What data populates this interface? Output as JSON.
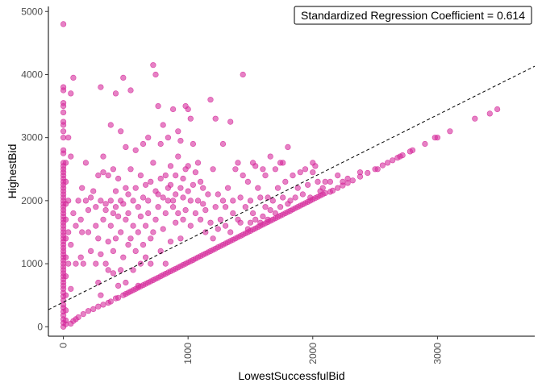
{
  "chart_data": {
    "type": "scatter",
    "title": "",
    "xlabel": "LowestSuccessfulBid",
    "ylabel": "HighestBid",
    "xlim": [
      -120,
      3780
    ],
    "ylim": [
      -150,
      5080
    ],
    "x_ticks": [
      0,
      1000,
      2000,
      3000
    ],
    "x_tick_labels": [
      "0",
      "1000",
      "2000",
      "3000"
    ],
    "y_ticks": [
      0,
      1000,
      2000,
      3000,
      4000,
      5000
    ],
    "y_tick_labels": [
      "0",
      "1000",
      "2000",
      "3000",
      "4000",
      "5000"
    ],
    "grid": false,
    "annotation": "Standardized Regression Coefficient = 0.614",
    "annotation_position": "top-right",
    "point_color": "#d62d9c",
    "regression_line": {
      "style": "dashed",
      "color": "#000000",
      "intercept": 390,
      "slope": 0.99
    },
    "points": [
      [
        0,
        0
      ],
      [
        0,
        60
      ],
      [
        0,
        120
      ],
      [
        0,
        180
      ],
      [
        0,
        240
      ],
      [
        0,
        300
      ],
      [
        0,
        350
      ],
      [
        0,
        420
      ],
      [
        0,
        480
      ],
      [
        0,
        540
      ],
      [
        0,
        600
      ],
      [
        0,
        650
      ],
      [
        0,
        700
      ],
      [
        0,
        750
      ],
      [
        0,
        800
      ],
      [
        0,
        850
      ],
      [
        0,
        900
      ],
      [
        0,
        950
      ],
      [
        0,
        1000
      ],
      [
        0,
        1050
      ],
      [
        0,
        1100
      ],
      [
        0,
        1150
      ],
      [
        0,
        1200
      ],
      [
        0,
        1250
      ],
      [
        0,
        1300
      ],
      [
        0,
        1350
      ],
      [
        0,
        1400
      ],
      [
        0,
        1450
      ],
      [
        0,
        1500
      ],
      [
        0,
        1550
      ],
      [
        0,
        1600
      ],
      [
        0,
        1650
      ],
      [
        0,
        1700
      ],
      [
        0,
        1750
      ],
      [
        0,
        1800
      ],
      [
        0,
        1850
      ],
      [
        0,
        1900
      ],
      [
        0,
        1950
      ],
      [
        0,
        2000
      ],
      [
        0,
        2050
      ],
      [
        0,
        2100
      ],
      [
        0,
        2150
      ],
      [
        0,
        2200
      ],
      [
        0,
        2250
      ],
      [
        0,
        2300
      ],
      [
        0,
        2350
      ],
      [
        0,
        2400
      ],
      [
        0,
        2450
      ],
      [
        0,
        2500
      ],
      [
        0,
        2550
      ],
      [
        0,
        2600
      ],
      [
        0,
        2750
      ],
      [
        0,
        2800
      ],
      [
        0,
        3000
      ],
      [
        0,
        3100
      ],
      [
        0,
        3200
      ],
      [
        0,
        3250
      ],
      [
        0,
        3400
      ],
      [
        0,
        3500
      ],
      [
        0,
        3550
      ],
      [
        0,
        3750
      ],
      [
        0,
        3800
      ],
      [
        0,
        4800
      ],
      [
        20,
        40
      ],
      [
        20,
        100
      ],
      [
        20,
        260
      ],
      [
        20,
        500
      ],
      [
        20,
        800
      ],
      [
        20,
        1100
      ],
      [
        20,
        1400
      ],
      [
        20,
        1700
      ],
      [
        20,
        1950
      ],
      [
        20,
        2300
      ],
      [
        20,
        2600
      ],
      [
        40,
        1000
      ],
      [
        40,
        1500
      ],
      [
        40,
        2000
      ],
      [
        40,
        3000
      ],
      [
        60,
        50
      ],
      [
        60,
        600
      ],
      [
        60,
        1300
      ],
      [
        60,
        2700
      ],
      [
        60,
        3700
      ],
      [
        80,
        90
      ],
      [
        80,
        1800
      ],
      [
        80,
        3950
      ],
      [
        100,
        120
      ],
      [
        100,
        1000
      ],
      [
        100,
        1600
      ],
      [
        120,
        150
      ],
      [
        120,
        2000
      ],
      [
        140,
        1100
      ],
      [
        140,
        1700
      ],
      [
        150,
        2200
      ],
      [
        150,
        1500
      ],
      [
        160,
        1000
      ],
      [
        160,
        200
      ],
      [
        180,
        2000
      ],
      [
        180,
        2600
      ],
      [
        200,
        250
      ],
      [
        200,
        1500
      ],
      [
        200,
        1850
      ],
      [
        220,
        2050
      ],
      [
        220,
        1200
      ],
      [
        240,
        280
      ],
      [
        240,
        2150
      ],
      [
        260,
        1600
      ],
      [
        260,
        1000
      ],
      [
        260,
        1900
      ],
      [
        280,
        320
      ],
      [
        280,
        2400
      ],
      [
        280,
        1400
      ],
      [
        280,
        700
      ],
      [
        300,
        2000
      ],
      [
        300,
        1150
      ],
      [
        300,
        500
      ],
      [
        300,
        3800
      ],
      [
        320,
        350
      ],
      [
        320,
        1700
      ],
      [
        320,
        2700
      ],
      [
        320,
        2450
      ],
      [
        340,
        1850
      ],
      [
        340,
        1000
      ],
      [
        340,
        1950
      ],
      [
        360,
        380
      ],
      [
        360,
        2400
      ],
      [
        360,
        1350
      ],
      [
        360,
        900
      ],
      [
        380,
        400
      ],
      [
        380,
        1600
      ],
      [
        380,
        2000
      ],
      [
        380,
        3200
      ],
      [
        400,
        1800
      ],
      [
        400,
        1200
      ],
      [
        400,
        2500
      ],
      [
        400,
        850
      ],
      [
        420,
        450
      ],
      [
        420,
        1900
      ],
      [
        420,
        2150
      ],
      [
        420,
        1400
      ],
      [
        420,
        3700
      ],
      [
        440,
        460
      ],
      [
        440,
        2350
      ],
      [
        440,
        1750
      ],
      [
        440,
        650
      ],
      [
        460,
        2000
      ],
      [
        460,
        1500
      ],
      [
        460,
        3100
      ],
      [
        460,
        900
      ],
      [
        480,
        500
      ],
      [
        480,
        1950
      ],
      [
        480,
        3950
      ],
      [
        480,
        1100
      ],
      [
        500,
        520
      ],
      [
        500,
        2200
      ],
      [
        500,
        1700
      ],
      [
        500,
        2850
      ],
      [
        500,
        700
      ],
      [
        520,
        540
      ],
      [
        520,
        1800
      ],
      [
        520,
        2100
      ],
      [
        520,
        1300
      ],
      [
        540,
        560
      ],
      [
        540,
        2500
      ],
      [
        540,
        1400
      ],
      [
        540,
        3750
      ],
      [
        560,
        580
      ],
      [
        560,
        1600
      ],
      [
        560,
        2000
      ],
      [
        560,
        900
      ],
      [
        580,
        600
      ],
      [
        580,
        2200
      ],
      [
        580,
        2800
      ],
      [
        580,
        1200
      ],
      [
        600,
        620
      ],
      [
        600,
        1900
      ],
      [
        600,
        1500
      ],
      [
        600,
        650
      ],
      [
        620,
        640
      ],
      [
        620,
        2400
      ],
      [
        620,
        1000
      ],
      [
        620,
        1750
      ],
      [
        640,
        660
      ],
      [
        640,
        2900
      ],
      [
        640,
        1300
      ],
      [
        640,
        2050
      ],
      [
        660,
        680
      ],
      [
        660,
        1600
      ],
      [
        660,
        2250
      ],
      [
        660,
        1100
      ],
      [
        680,
        700
      ],
      [
        680,
        2000
      ],
      [
        680,
        1800
      ],
      [
        680,
        3000
      ],
      [
        700,
        720
      ],
      [
        700,
        2300
      ],
      [
        700,
        1400
      ],
      [
        700,
        1000
      ],
      [
        720,
        740
      ],
      [
        720,
        4150
      ],
      [
        720,
        2600
      ],
      [
        720,
        1500
      ],
      [
        740,
        760
      ],
      [
        740,
        4000
      ],
      [
        740,
        2150
      ],
      [
        740,
        1700
      ],
      [
        760,
        780
      ],
      [
        760,
        2100
      ],
      [
        760,
        3500
      ],
      [
        760,
        1900
      ],
      [
        780,
        800
      ],
      [
        780,
        2350
      ],
      [
        780,
        1200
      ],
      [
        780,
        2900
      ],
      [
        800,
        820
      ],
      [
        800,
        2050
      ],
      [
        800,
        3200
      ],
      [
        800,
        1550
      ],
      [
        820,
        840
      ],
      [
        820,
        2400
      ],
      [
        820,
        1800
      ],
      [
        820,
        1000
      ],
      [
        840,
        860
      ],
      [
        840,
        2000
      ],
      [
        840,
        3000
      ],
      [
        840,
        2200
      ],
      [
        860,
        880
      ],
      [
        860,
        2250
      ],
      [
        860,
        1350
      ],
      [
        860,
        2550
      ],
      [
        880,
        900
      ],
      [
        880,
        2000
      ],
      [
        880,
        3450
      ],
      [
        880,
        1900
      ],
      [
        900,
        920
      ],
      [
        900,
        2400
      ],
      [
        900,
        2100
      ],
      [
        900,
        1650
      ],
      [
        920,
        940
      ],
      [
        920,
        2700
      ],
      [
        920,
        1800
      ],
      [
        920,
        3100
      ],
      [
        940,
        960
      ],
      [
        940,
        2200
      ],
      [
        940,
        2950
      ],
      [
        940,
        1400
      ],
      [
        960,
        980
      ],
      [
        960,
        2050
      ],
      [
        960,
        1700
      ],
      [
        960,
        2350
      ],
      [
        980,
        1000
      ],
      [
        980,
        3500
      ],
      [
        980,
        2500
      ],
      [
        980,
        1850
      ],
      [
        1000,
        1020
      ],
      [
        1000,
        3450
      ],
      [
        1000,
        2550
      ],
      [
        1000,
        2150
      ],
      [
        1020,
        1040
      ],
      [
        1020,
        3300
      ],
      [
        1020,
        2000
      ],
      [
        1020,
        1600
      ],
      [
        1040,
        1060
      ],
      [
        1040,
        2900
      ],
      [
        1040,
        2250
      ],
      [
        1060,
        1080
      ],
      [
        1060,
        2450
      ],
      [
        1060,
        1800
      ],
      [
        1080,
        1100
      ],
      [
        1080,
        2000
      ],
      [
        1080,
        2600
      ],
      [
        1100,
        1120
      ],
      [
        1100,
        1700
      ],
      [
        1100,
        2300
      ],
      [
        1120,
        1140
      ],
      [
        1120,
        1950
      ],
      [
        1120,
        2200
      ],
      [
        1140,
        1160
      ],
      [
        1140,
        1850
      ],
      [
        1140,
        1500
      ],
      [
        1160,
        1180
      ],
      [
        1160,
        2100
      ],
      [
        1180,
        1200
      ],
      [
        1180,
        1650
      ],
      [
        1180,
        3600
      ],
      [
        1200,
        1220
      ],
      [
        1200,
        2500
      ],
      [
        1200,
        1400
      ],
      [
        1220,
        1240
      ],
      [
        1220,
        1900
      ],
      [
        1220,
        3300
      ],
      [
        1240,
        1260
      ],
      [
        1240,
        2100
      ],
      [
        1240,
        1550
      ],
      [
        1260,
        1280
      ],
      [
        1260,
        1700
      ],
      [
        1280,
        1300
      ],
      [
        1280,
        2000
      ],
      [
        1280,
        2900
      ],
      [
        1300,
        1320
      ],
      [
        1300,
        1900
      ],
      [
        1300,
        1600
      ],
      [
        1320,
        1340
      ],
      [
        1320,
        2200
      ],
      [
        1340,
        1360
      ],
      [
        1340,
        1500
      ],
      [
        1340,
        3250
      ],
      [
        1360,
        1380
      ],
      [
        1360,
        2000
      ],
      [
        1360,
        1800
      ],
      [
        1380,
        1400
      ],
      [
        1380,
        2500
      ],
      [
        1400,
        1420
      ],
      [
        1400,
        2600
      ],
      [
        1400,
        1700
      ],
      [
        1420,
        1440
      ],
      [
        1420,
        2050
      ],
      [
        1420,
        1650
      ],
      [
        1440,
        1460
      ],
      [
        1440,
        4000
      ],
      [
        1440,
        2400
      ],
      [
        1460,
        1480
      ],
      [
        1460,
        1900
      ],
      [
        1480,
        1500
      ],
      [
        1480,
        2300
      ],
      [
        1480,
        1550
      ],
      [
        1500,
        1520
      ],
      [
        1500,
        2000
      ],
      [
        1500,
        1650
      ],
      [
        1520,
        1540
      ],
      [
        1520,
        2600
      ],
      [
        1520,
        1800
      ],
      [
        1540,
        1560
      ],
      [
        1540,
        2550
      ],
      [
        1540,
        1700
      ],
      [
        1560,
        1580
      ],
      [
        1560,
        2200
      ],
      [
        1580,
        1600
      ],
      [
        1580,
        2050
      ],
      [
        1580,
        1650
      ],
      [
        1600,
        1620
      ],
      [
        1600,
        2500
      ],
      [
        1600,
        1750
      ],
      [
        1620,
        1640
      ],
      [
        1620,
        2400
      ],
      [
        1620,
        1900
      ],
      [
        1640,
        1660
      ],
      [
        1640,
        2050
      ],
      [
        1640,
        1700
      ],
      [
        1660,
        1680
      ],
      [
        1660,
        2700
      ],
      [
        1660,
        1850
      ],
      [
        1680,
        1700
      ],
      [
        1680,
        2000
      ],
      [
        1700,
        1720
      ],
      [
        1700,
        2500
      ],
      [
        1700,
        1800
      ],
      [
        1720,
        1740
      ],
      [
        1720,
        2200
      ],
      [
        1740,
        1760
      ],
      [
        1740,
        2600
      ],
      [
        1740,
        1900
      ],
      [
        1760,
        1780
      ],
      [
        1760,
        2050
      ],
      [
        1760,
        2600
      ],
      [
        1780,
        1800
      ],
      [
        1780,
        2300
      ],
      [
        1800,
        1820
      ],
      [
        1800,
        2850
      ],
      [
        1800,
        1950
      ],
      [
        1820,
        1840
      ],
      [
        1820,
        2000
      ],
      [
        1840,
        1860
      ],
      [
        1840,
        2400
      ],
      [
        1860,
        1880
      ],
      [
        1860,
        2050
      ],
      [
        1880,
        1900
      ],
      [
        1880,
        2200
      ],
      [
        1900,
        1920
      ],
      [
        1900,
        2450
      ],
      [
        1920,
        1940
      ],
      [
        1920,
        2100
      ],
      [
        1940,
        1960
      ],
      [
        1940,
        2500
      ],
      [
        1960,
        1980
      ],
      [
        1960,
        2250
      ],
      [
        1980,
        2000
      ],
      [
        1980,
        2050
      ],
      [
        2000,
        2020
      ],
      [
        2000,
        2600
      ],
      [
        2000,
        2450
      ],
      [
        2020,
        2040
      ],
      [
        2020,
        2550
      ],
      [
        2040,
        2060
      ],
      [
        2040,
        2300
      ],
      [
        2060,
        2080
      ],
      [
        2060,
        2150
      ],
      [
        2080,
        2100
      ],
      [
        2080,
        2200
      ],
      [
        2100,
        2120
      ],
      [
        2100,
        2300
      ],
      [
        2140,
        2140
      ],
      [
        2140,
        2300
      ],
      [
        2160,
        2160
      ],
      [
        2200,
        2200
      ],
      [
        2200,
        2400
      ],
      [
        2240,
        2240
      ],
      [
        2240,
        2300
      ],
      [
        2280,
        2280
      ],
      [
        2280,
        2350
      ],
      [
        2320,
        2320
      ],
      [
        2380,
        2380
      ],
      [
        2380,
        2450
      ],
      [
        2440,
        2440
      ],
      [
        2500,
        2500
      ],
      [
        2520,
        2500
      ],
      [
        2560,
        2560
      ],
      [
        2600,
        2600
      ],
      [
        2640,
        2640
      ],
      [
        2680,
        2680
      ],
      [
        2700,
        2700
      ],
      [
        2720,
        2720
      ],
      [
        2780,
        2780
      ],
      [
        2800,
        2800
      ],
      [
        2900,
        2900
      ],
      [
        2980,
        3000
      ],
      [
        3000,
        3000
      ],
      [
        3100,
        3100
      ],
      [
        3300,
        3300
      ],
      [
        3420,
        3380
      ],
      [
        3480,
        3450
      ]
    ]
  }
}
